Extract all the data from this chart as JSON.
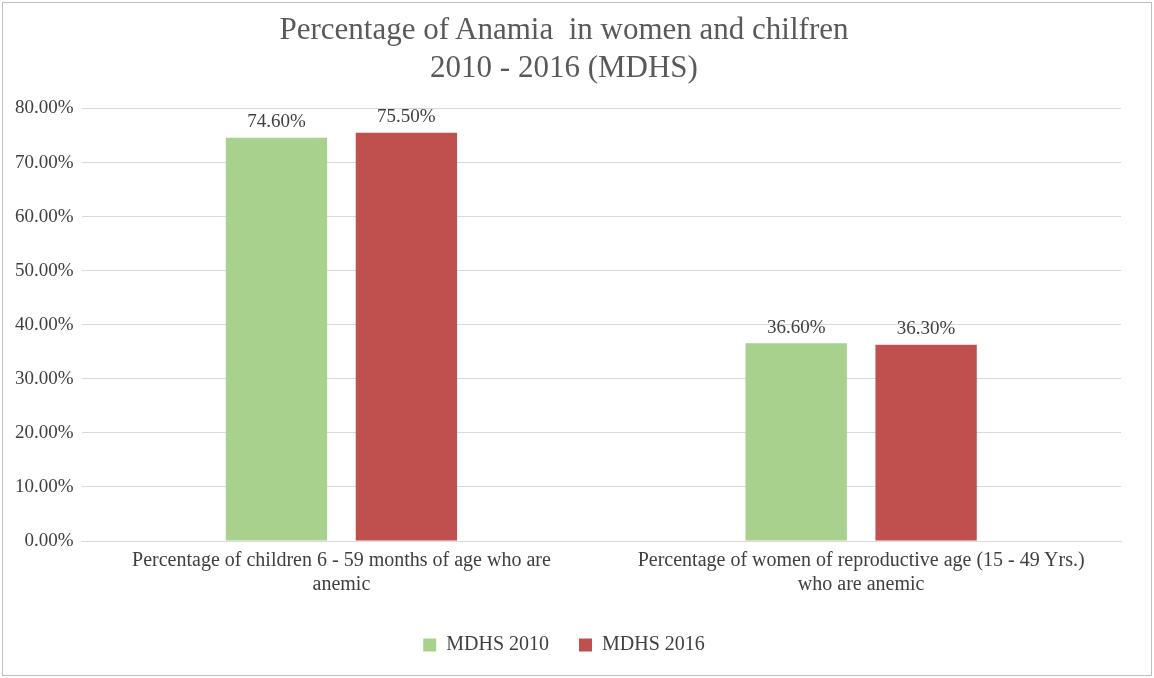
{
  "chart_data": {
    "type": "bar",
    "title": "Percentage of Anamia  in women and chilfren\n2010 - 2016 (MDHS)",
    "categories": [
      "Percentage of children 6 - 59 months of age who are anemic",
      "Percentage of women of reproductive age (15 - 49 Yrs.) who are anemic"
    ],
    "series": [
      {
        "name": "MDHS 2010",
        "color": "#a9d18e",
        "values": [
          74.6,
          36.6
        ],
        "value_labels": [
          "74.60%",
          "36.60%"
        ]
      },
      {
        "name": "MDHS 2016",
        "color": "#c0504d",
        "values": [
          75.5,
          36.3
        ],
        "value_labels": [
          "75.50%",
          "36.30%"
        ]
      }
    ],
    "ylim": [
      0,
      80
    ],
    "yticks": [
      {
        "value": 0,
        "label": "0.00%"
      },
      {
        "value": 10,
        "label": "10.00%"
      },
      {
        "value": 20,
        "label": "20.00%"
      },
      {
        "value": 30,
        "label": "30.00%"
      },
      {
        "value": 40,
        "label": "40.00%"
      },
      {
        "value": 50,
        "label": "50.00%"
      },
      {
        "value": 60,
        "label": "60.00%"
      },
      {
        "value": 70,
        "label": "70.00%"
      },
      {
        "value": 80,
        "label": "80.00%"
      }
    ],
    "grid": "y",
    "legend": "bottom"
  }
}
